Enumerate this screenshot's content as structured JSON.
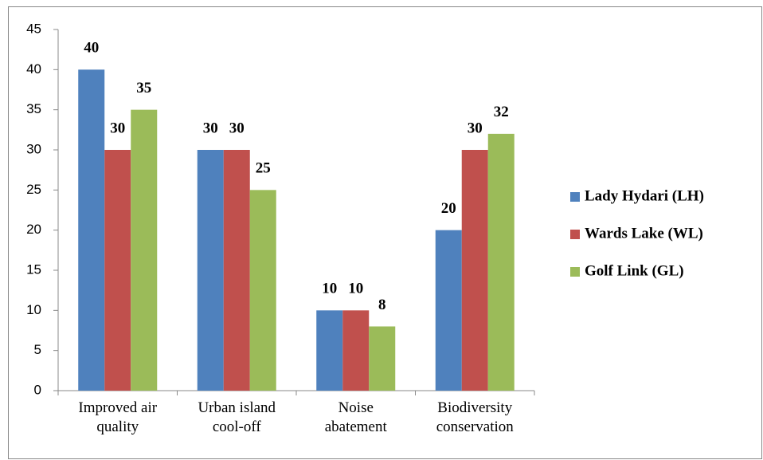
{
  "chart_data": {
    "type": "bar",
    "categories": [
      "Improved air\nquality",
      "Urban island\ncool-off",
      "Noise\nabatement",
      "Biodiversity\nconservation"
    ],
    "series": [
      {
        "name": "Lady Hydari (LH)",
        "color": "#4f81bd",
        "values": [
          40,
          30,
          10,
          20
        ]
      },
      {
        "name": "Wards Lake (WL)",
        "color": "#c0504d",
        "values": [
          30,
          30,
          10,
          30
        ]
      },
      {
        "name": "Golf Link (GL)",
        "color": "#9bbb59",
        "values": [
          35,
          25,
          8,
          32
        ]
      }
    ],
    "ylim": [
      0,
      45
    ],
    "yticks": [
      0,
      5,
      10,
      15,
      20,
      25,
      30,
      35,
      40,
      45
    ],
    "grid": false,
    "legend": "right"
  }
}
